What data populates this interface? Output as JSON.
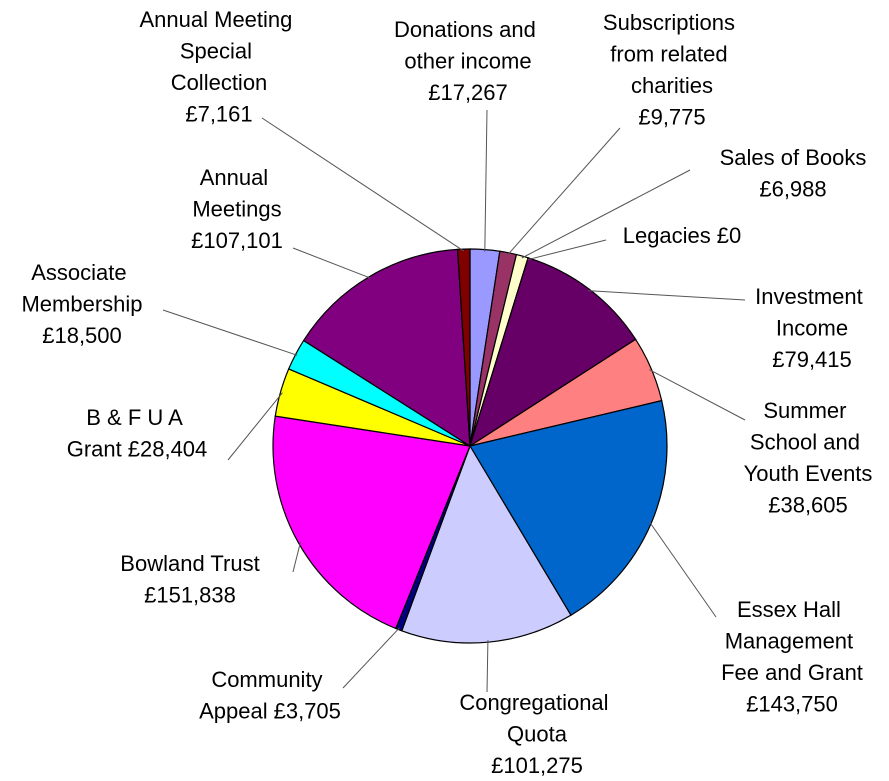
{
  "chart_data": {
    "type": "pie",
    "categories": [
      "Donations and other income",
      "Subscriptions from related charities",
      "Sales of Books",
      "Legacies",
      "Investment Income",
      "Summer School and Youth Events",
      "Essex Hall Management Fee and Grant",
      "Congregational Quota",
      "Community Appeal",
      "Bowland Trust",
      "B & F U A Grant",
      "Associate Membership",
      "Annual Meetings",
      "Annual Meeting Special Collection"
    ],
    "values": [
      17267,
      9775,
      6988,
      0,
      79415,
      38605,
      143750,
      101275,
      3705,
      151838,
      28404,
      18500,
      107101,
      7161
    ],
    "value_labels": [
      "£17,267",
      "£9,775",
      "£6,988",
      "£0",
      "£79,415",
      "£38,605",
      "£143,750",
      "£101,275",
      "£3,705",
      "£151,838",
      "£28,404",
      "£18,500",
      "£107,101",
      "£7,161"
    ],
    "colors": [
      "#9999ff",
      "#993366",
      "#ffffcc",
      "#ffffff",
      "#660066",
      "#ff8080",
      "#0066cc",
      "#ccccff",
      "#000080",
      "#ff00ff",
      "#ffff00",
      "#00ffff",
      "#800080",
      "#800000"
    ]
  }
}
